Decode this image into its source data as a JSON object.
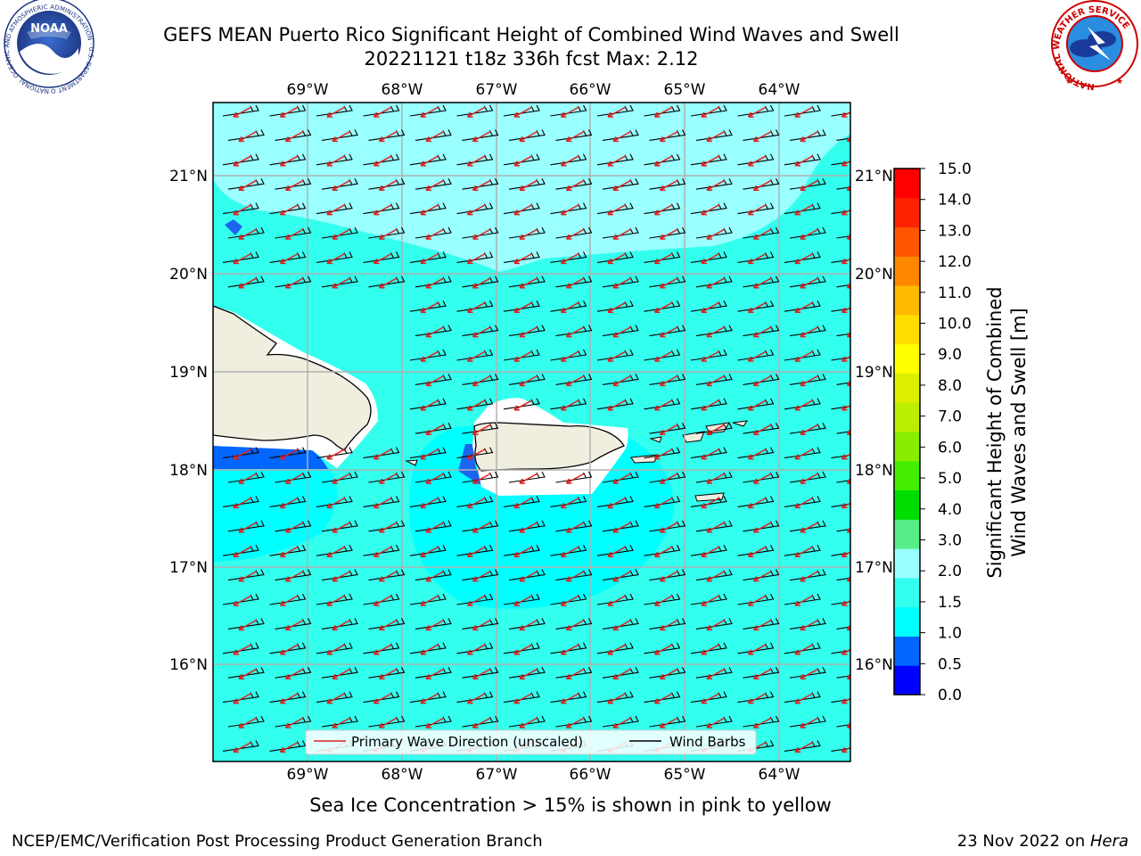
{
  "header": {
    "title_line1": "GEFS MEAN Puerto Rico Significant Height of Combined Wind Waves and Swell",
    "title_line2": "20221121 t18z 336h fcst   Max: 2.12"
  },
  "logos": {
    "noaa_text": "NOAA",
    "noaa_ring_text": "NATIONAL OCEANIC AND ATMOSPHERIC ADMINISTRATION · U.S. DEPARTMENT OF COMMERCE",
    "nws_ring_text": "NATIONAL WEATHER SERVICE"
  },
  "map": {
    "lon_labels": [
      "69°W",
      "68°W",
      "67°W",
      "66°W",
      "65°W",
      "64°W"
    ],
    "lat_labels": [
      "21°N",
      "20°N",
      "19°N",
      "18°N",
      "17°N",
      "16°N"
    ],
    "legend": {
      "wave_label": "Primary Wave Direction (unscaled)",
      "barb_label": "Wind Barbs"
    }
  },
  "colorbar": {
    "label_line1": "Significant Height of Combined",
    "label_line2": "Wind Waves and Swell [m]",
    "ticks": [
      "15.0",
      "14.0",
      "13.0",
      "12.0",
      "11.0",
      "10.0",
      "9.0",
      "8.0",
      "7.0",
      "6.0",
      "5.0",
      "4.0",
      "3.0",
      "2.0",
      "1.5",
      "1.0",
      "0.5",
      "0.0"
    ],
    "colors": [
      "#0000ff",
      "#0066ff",
      "#00ffff",
      "#33ffee",
      "#99ffff",
      "#55ee88",
      "#00dd00",
      "#44ee00",
      "#88ee00",
      "#bbee00",
      "#ddee00",
      "#ffff00",
      "#ffdd00",
      "#ffbb00",
      "#ff8800",
      "#ff5500",
      "#ff2200",
      "#ff0000"
    ]
  },
  "caption": "Sea Ice Concentration > 15% is shown in pink to yellow",
  "footer": {
    "left": "NCEP/EMC/Verification Post Processing Product Generation Branch",
    "right_date": "23 Nov 2022 on ",
    "right_host": "Hera"
  }
}
